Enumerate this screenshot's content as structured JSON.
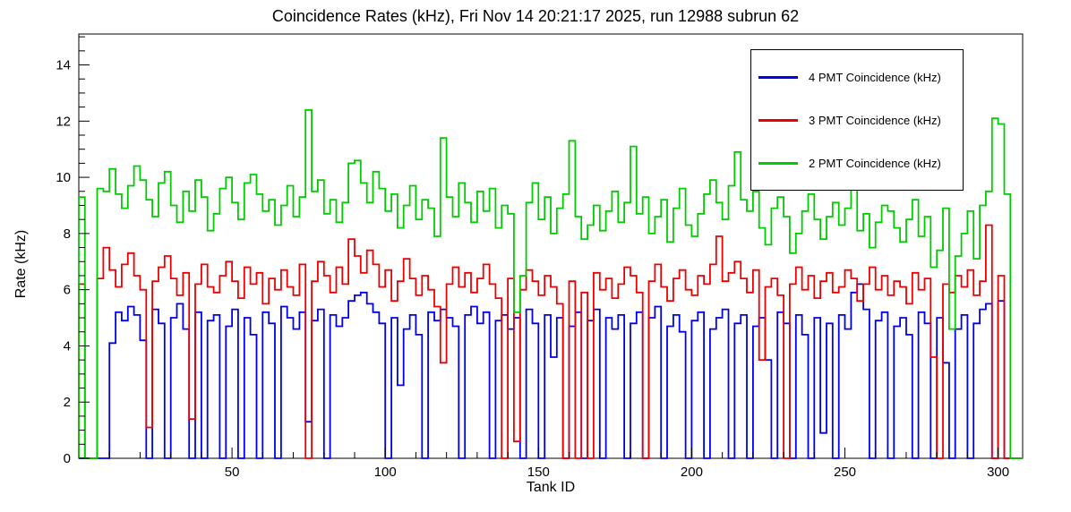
{
  "title": "Coincidence Rates (kHz), Fri Nov 14 20:21:17 2025, run 12988 subrun 62",
  "chart_data": {
    "type": "line",
    "subtype": "step-histogram",
    "title": "Coincidence Rates (kHz), Fri Nov 14 20:21:17 2025, run 12988 subrun 62",
    "xlabel": "Tank ID",
    "ylabel": "Rate (kHz)",
    "xlim": [
      0,
      308
    ],
    "ylim": [
      0,
      15.1
    ],
    "xticks": [
      50,
      100,
      150,
      200,
      250,
      300
    ],
    "x_minor_step": 10,
    "yticks": [
      0,
      2,
      4,
      6,
      8,
      10,
      12,
      14
    ],
    "y_minor_step": 0.5,
    "bin_width": 2,
    "x_start": 0,
    "grid": false,
    "legend_position": "top-right",
    "frame_color": "#000000",
    "background_color": "#ffffff",
    "series": [
      {
        "name": "4 PMT Coincidence (kHz)",
        "color": "#0000ee",
        "values": [
          0,
          0,
          0,
          0,
          0,
          4.1,
          5.2,
          4.9,
          5.4,
          5.1,
          4.2,
          0,
          5.3,
          4.8,
          0,
          5.0,
          5.5,
          4.6,
          0,
          5.2,
          0,
          4.9,
          5.1,
          0,
          4.7,
          5.3,
          0,
          5.0,
          4.4,
          0,
          5.2,
          4.8,
          0,
          5.4,
          5.0,
          4.6,
          5.2,
          1.3,
          4.9,
          5.3,
          0,
          5.1,
          4.7,
          5.0,
          5.6,
          5.8,
          5.9,
          5.5,
          5.2,
          4.8,
          0,
          5.0,
          2.6,
          4.6,
          5.1,
          4.4,
          0,
          5.2,
          4.9,
          5.3,
          5.0,
          4.7,
          0,
          5.1,
          5.4,
          4.8,
          5.2,
          0,
          4.9,
          5.1,
          4.6,
          5.0,
          0,
          5.3,
          4.8,
          0,
          5.1,
          3.6,
          5.0,
          0,
          4.7,
          5.2,
          0,
          4.9,
          5.3,
          0,
          5.0,
          4.6,
          5.1,
          0,
          4.8,
          5.2,
          0,
          5.0,
          5.4,
          0,
          4.7,
          5.1,
          4.5,
          0,
          4.9,
          5.2,
          0,
          4.6,
          5.0,
          5.3,
          0,
          4.8,
          5.1,
          0,
          4.7,
          5.0,
          3.5,
          0,
          5.2,
          4.8,
          0,
          5.1,
          4.4,
          0,
          5.0,
          0.9,
          4.8,
          0,
          5.1,
          4.6,
          5.9,
          6.2,
          5.3,
          0,
          4.9,
          5.2,
          0,
          4.7,
          5.0,
          4.4,
          0,
          5.2,
          4.8,
          0,
          5.0,
          3.4,
          0,
          4.6,
          5.1,
          0,
          4.8,
          5.3,
          5.5,
          0,
          5.6,
          0,
          0,
          0
        ]
      },
      {
        "name": "3 PMT Coincidence (kHz)",
        "color": "#ee0000",
        "values": [
          6.2,
          0,
          0,
          6.4,
          7.5,
          6.7,
          6.1,
          6.9,
          7.3,
          6.5,
          6.0,
          1.1,
          6.3,
          6.8,
          7.2,
          6.4,
          5.8,
          6.6,
          1.4,
          6.2,
          6.9,
          6.1,
          5.9,
          6.5,
          7.0,
          6.3,
          5.7,
          6.8,
          6.2,
          6.6,
          5.5,
          6.4,
          6.0,
          6.7,
          6.1,
          5.8,
          6.9,
          0,
          6.3,
          7.0,
          6.5,
          5.9,
          6.8,
          6.2,
          7.8,
          7.2,
          6.6,
          7.4,
          6.9,
          6.1,
          6.7,
          5.6,
          6.3,
          7.1,
          6.4,
          5.8,
          6.5,
          6.0,
          5.4,
          3.4,
          6.2,
          6.8,
          6.1,
          6.6,
          5.9,
          6.4,
          6.9,
          6.2,
          5.7,
          0,
          6.4,
          0.6,
          6.0,
          6.7,
          6.3,
          5.8,
          6.5,
          6.1,
          5.5,
          0,
          6.3,
          0,
          5.9,
          0,
          6.6,
          6.0,
          6.4,
          5.7,
          6.2,
          6.8,
          6.5,
          5.9,
          0,
          6.3,
          6.9,
          6.1,
          5.6,
          6.4,
          6.7,
          6.0,
          5.8,
          6.5,
          6.2,
          6.9,
          7.9,
          6.3,
          6.6,
          7.0,
          6.4,
          5.9,
          6.7,
          3.5,
          6.1,
          6.4,
          5.8,
          0,
          6.2,
          6.8,
          6.0,
          6.5,
          5.7,
          6.3,
          6.6,
          5.9,
          6.1,
          6.7,
          6.4,
          5.6,
          6.2,
          6.8,
          6.0,
          6.5,
          5.8,
          6.3,
          6.1,
          5.5,
          6.6,
          6.0,
          6.4,
          3.6,
          0,
          6.2,
          5.9,
          6.5,
          6.1,
          6.7,
          5.8,
          6.3,
          8.3,
          0,
          6.5,
          0,
          0,
          0
        ]
      },
      {
        "name": "2 PMT Coincidence (kHz)",
        "color": "#00cc00",
        "values": [
          9.3,
          0,
          0,
          9.6,
          9.5,
          10.3,
          9.4,
          8.9,
          9.7,
          10.4,
          9.9,
          9.2,
          8.6,
          9.8,
          10.2,
          9.0,
          8.4,
          9.5,
          8.8,
          9.9,
          9.3,
          8.1,
          8.7,
          9.6,
          10.0,
          9.1,
          8.5,
          9.8,
          10.1,
          9.4,
          8.8,
          9.2,
          8.3,
          9.0,
          9.7,
          8.6,
          9.3,
          12.4,
          9.5,
          9.9,
          8.7,
          9.2,
          8.4,
          9.1,
          10.5,
          10.6,
          9.8,
          9.1,
          10.2,
          9.6,
          8.8,
          9.4,
          8.2,
          9.0,
          9.7,
          8.5,
          9.2,
          8.9,
          7.9,
          11.4,
          9.3,
          8.6,
          9.8,
          9.1,
          8.4,
          9.5,
          8.8,
          9.6,
          8.2,
          9.0,
          8.7,
          5.2,
          6.5,
          9.1,
          9.8,
          8.5,
          9.3,
          8.0,
          8.9,
          9.4,
          11.3,
          8.6,
          7.8,
          8.3,
          9.0,
          8.1,
          8.8,
          9.5,
          8.4,
          9.1,
          11.1,
          8.7,
          9.3,
          8.0,
          8.6,
          9.2,
          7.7,
          8.9,
          9.6,
          8.3,
          7.9,
          8.7,
          9.4,
          9.9,
          9.1,
          8.5,
          9.7,
          10.9,
          9.2,
          8.8,
          9.5,
          8.2,
          7.6,
          8.9,
          9.3,
          8.6,
          7.3,
          8.0,
          8.8,
          9.4,
          8.5,
          7.8,
          8.6,
          9.1,
          8.3,
          8.9,
          9.6,
          8.1,
          8.7,
          7.5,
          8.4,
          9.0,
          8.8,
          8.2,
          7.7,
          8.5,
          9.2,
          7.9,
          8.6,
          6.8,
          7.4,
          8.9,
          4.6,
          7.2,
          8.0,
          8.8,
          7.1,
          9.0,
          9.5,
          12.1,
          11.9,
          9.4,
          0,
          0
        ]
      }
    ]
  }
}
